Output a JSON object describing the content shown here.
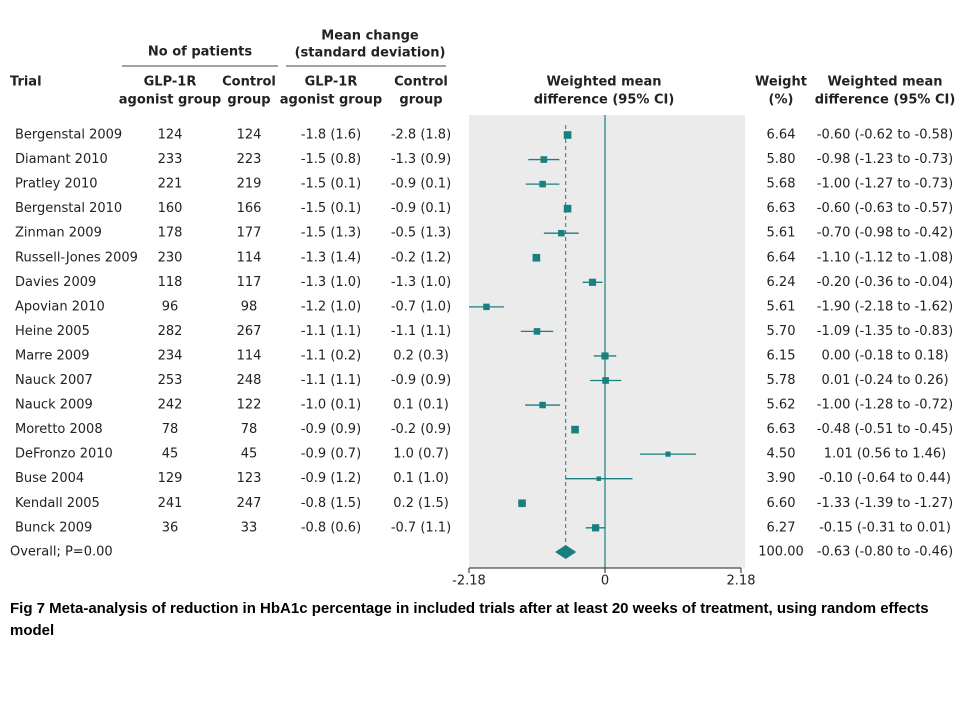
{
  "chart_data": {
    "type": "forest",
    "headers": {
      "patients": "No of patients",
      "change": [
        "Mean change",
        "(standard deviation)"
      ],
      "trial": "Trial",
      "glp_n": [
        "GLP-1R",
        "agonist group"
      ],
      "control_n": [
        "Control",
        "group"
      ],
      "glp_change": [
        "GLP-1R",
        "agonist group"
      ],
      "control_change": [
        "Control",
        "group"
      ],
      "plot": [
        "Weighted mean",
        "difference (95% CI)"
      ],
      "weight": [
        "Weight",
        "(%)"
      ],
      "wmd": [
        "Weighted mean",
        "difference (95% CI)"
      ]
    },
    "trials": [
      "Bergenstal 2009",
      "Diamant 2010",
      "Pratley 2010",
      "Bergenstal 2010",
      "Zinman 2009",
      "Russell-Jones 2009",
      "Davies 2009",
      "Apovian 2010",
      "Heine 2005",
      "Marre 2009",
      "Nauck 2007",
      "Nauck 2009",
      "Moretto 2008",
      "DeFronzo 2010",
      "Buse 2004",
      "Kendall 2005",
      "Bunck 2009"
    ],
    "n_glp": [
      124,
      233,
      221,
      160,
      178,
      230,
      118,
      96,
      282,
      234,
      253,
      242,
      78,
      45,
      129,
      241,
      36
    ],
    "n_control": [
      124,
      223,
      219,
      166,
      177,
      114,
      117,
      98,
      267,
      114,
      248,
      122,
      78,
      45,
      123,
      247,
      33
    ],
    "change_glp": [
      "-1.8 (1.6)",
      "-1.5 (0.8)",
      "-1.5 (0.1)",
      "-1.5 (0.1)",
      "-1.5 (1.3)",
      "-1.3 (1.4)",
      "-1.3 (1.0)",
      "-1.2 (1.0)",
      "-1.1 (1.1)",
      "-1.1 (0.2)",
      "-1.1 (1.1)",
      "-1.0 (0.1)",
      "-0.9 (0.9)",
      "-0.9 (0.7)",
      "-0.9 (1.2)",
      "-0.8 (1.5)",
      "-0.8 (0.6)"
    ],
    "change_control": [
      "-2.8 (1.8)",
      "-1.3 (0.9)",
      "-0.9 (0.1)",
      "-0.9 (0.1)",
      "-0.5 (1.3)",
      "-0.2 (1.2)",
      "-1.3 (1.0)",
      "-0.7 (1.0)",
      "-1.1 (1.1)",
      "0.2 (0.3)",
      "-0.9 (0.9)",
      "0.1 (0.1)",
      "-0.2 (0.9)",
      "1.0 (0.7)",
      "0.1 (1.0)",
      "0.2 (1.5)",
      "-0.7 (1.1)"
    ],
    "weights": [
      6.64,
      5.8,
      5.68,
      6.63,
      5.61,
      6.64,
      6.24,
      5.61,
      5.7,
      6.15,
      5.78,
      5.62,
      6.63,
      4.5,
      3.9,
      6.6,
      6.27
    ],
    "weight_labels": [
      "6.64",
      "5.80",
      "5.68",
      "6.63",
      "5.61",
      "6.64",
      "6.24",
      "5.61",
      "5.70",
      "6.15",
      "5.78",
      "5.62",
      "6.63",
      "4.50",
      "3.90",
      "6.60",
      "6.27"
    ],
    "values": [
      -0.6,
      -0.98,
      -1.0,
      -0.6,
      -0.7,
      -1.1,
      -0.2,
      -1.9,
      -1.09,
      0.0,
      0.01,
      -1.0,
      -0.48,
      1.01,
      -0.1,
      -1.33,
      -0.15
    ],
    "lower": [
      -0.62,
      -1.23,
      -1.27,
      -0.63,
      -0.98,
      -1.12,
      -0.36,
      -2.18,
      -1.35,
      -0.18,
      -0.24,
      -1.28,
      -0.51,
      0.56,
      -0.64,
      -1.39,
      -0.31
    ],
    "upper": [
      -0.58,
      -0.73,
      -0.73,
      -0.57,
      -0.42,
      -1.08,
      -0.04,
      -1.62,
      -0.83,
      0.18,
      0.26,
      -0.72,
      -0.45,
      1.46,
      0.44,
      -1.27,
      0.01
    ],
    "value_labels": [
      "-0.60 (-0.62 to -0.58)",
      "-0.98 (-1.23 to -0.73)",
      "-1.00 (-1.27 to -0.73)",
      "-0.60 (-0.63 to -0.57)",
      "-0.70 (-0.98 to -0.42)",
      "-1.10 (-1.12 to -1.08)",
      "-0.20 (-0.36 to -0.04)",
      "-1.90 (-2.18 to -1.62)",
      "-1.09 (-1.35 to -0.83)",
      "0.00 (-0.18 to 0.18)",
      "0.01 (-0.24 to 0.26)",
      "-1.00 (-1.28 to -0.72)",
      "-0.48 (-0.51 to -0.45)",
      "1.01 (0.56 to 1.46)",
      "-0.10 (-0.64 to 0.44)",
      "-1.33 (-1.39 to -1.27)",
      "-0.15 (-0.31 to 0.01)"
    ],
    "overall": {
      "label": "Overall; P=0.00",
      "weight_label": "100.00",
      "value": -0.63,
      "lower": -0.8,
      "upper": -0.46,
      "value_label": "-0.63 (-0.80 to -0.46)"
    },
    "xlim": [
      -2.18,
      2.18
    ],
    "xticks": [
      -2.18,
      0,
      2.18
    ],
    "color": "#1a7f7f"
  },
  "caption": "Fig 7 Meta-analysis of reduction in HbA1c percentage in included trials after at least 20 weeks of treatment, using random effects model"
}
